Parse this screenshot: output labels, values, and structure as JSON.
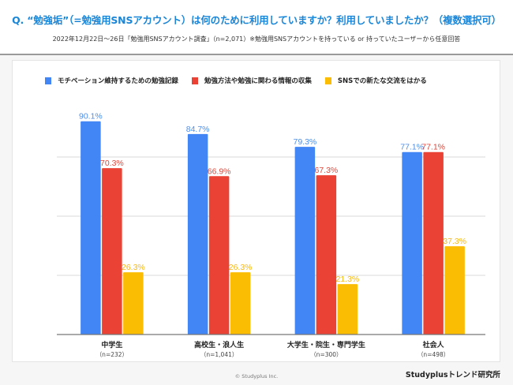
{
  "header": {
    "title": "Q. “勉強垢”（=勉強用SNSアカウント）は何のために利用していますか？利用していましたか？（複数選択可）",
    "subtitle": "2022年12月22日〜26日「勉強用SNSアカウント調査」（n=2,071）※勉強用SNSアカウントを持っている or 持っていたユーザーから任意回答"
  },
  "footer": {
    "copyright": "© Studyplus Inc.",
    "brand": "Studyplusトレンド研究所"
  },
  "chart_data": {
    "type": "bar",
    "title": "",
    "xlabel": "",
    "ylabel": "",
    "ylim": [
      0,
      100
    ],
    "grid": true,
    "legend_position": "top-left",
    "value_suffix": "%",
    "categories": [
      "中学生",
      "高校生・浪人生",
      "大学生・院生・専門学生",
      "社会人"
    ],
    "category_sublabels": [
      "（n=232）",
      "（n=1,041）",
      "（n=300）",
      "（n=498）"
    ],
    "series": [
      {
        "name": "モチベーション維持するための勉強記録",
        "color": "#4285f4",
        "label_color": "#4d8ee8",
        "values": [
          90.1,
          84.7,
          79.3,
          77.1
        ]
      },
      {
        "name": "勉強方法や勉強に関わる情報の収集",
        "color": "#ea4335",
        "label_color": "#e0473a",
        "values": [
          70.3,
          66.9,
          67.3,
          77.1
        ]
      },
      {
        "name": "SNSでの新たな交流をはかる",
        "color": "#fbbc04",
        "label_color": "#f4b81a",
        "values": [
          26.3,
          26.3,
          21.3,
          37.3
        ]
      }
    ]
  }
}
